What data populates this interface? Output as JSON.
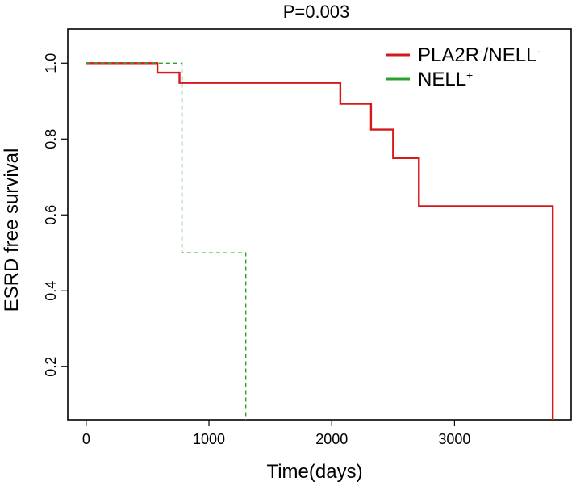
{
  "chart_data": {
    "type": "line",
    "step": true,
    "title": "P=0.003",
    "xlabel": "Time(days)",
    "ylabel": "ESRD free survival",
    "xlim": [
      -150,
      3950
    ],
    "ylim": [
      0.06,
      1.09
    ],
    "x_ticks": [
      0,
      1000,
      2000,
      3000
    ],
    "x_tick_labels": [
      "0",
      "1000",
      "2000",
      "3000"
    ],
    "y_ticks": [
      0.2,
      0.4,
      0.6,
      0.8,
      1.0
    ],
    "y_tick_labels": [
      "0.2",
      "0.4",
      "0.6",
      "0.8",
      "1.0"
    ],
    "grid": false,
    "legend_position": "top-right",
    "series": [
      {
        "name": "PLA2R-/NELL-",
        "name_base": "PLA2R",
        "name_sup1": "-",
        "name_mid": "/NELL",
        "name_sup2": "-",
        "color": "#d7191c",
        "style": "solid",
        "x": [
          0,
          580,
          760,
          2070,
          2320,
          2500,
          2710,
          3800,
          3800
        ],
        "y": [
          1.0,
          0.975,
          0.948,
          0.893,
          0.825,
          0.75,
          0.623,
          0.623,
          0.06
        ]
      },
      {
        "name": "NELL+",
        "name_base": "NELL",
        "name_sup1": "+",
        "color": "#2ca02c",
        "style": "dashed",
        "x": [
          0,
          780,
          1300,
          1300
        ],
        "y": [
          1.0,
          0.5,
          0.5,
          0.06
        ]
      }
    ]
  }
}
